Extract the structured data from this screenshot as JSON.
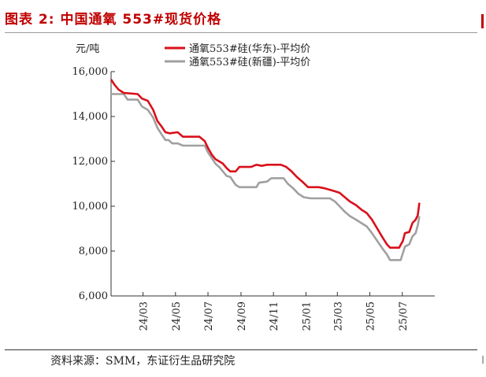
{
  "figure": {
    "title": "图表 2:  中国通氧 553#现货价格",
    "source": "资料来源：SMM，东证衍生品研究院"
  },
  "chart_data": {
    "type": "line",
    "title": "",
    "unit_label": "元/吨",
    "xlabel": "",
    "ylabel": "",
    "x_range": [
      "2024-01-01",
      "2025-08-31"
    ],
    "ylim": [
      6000,
      16000
    ],
    "yticks": [
      6000,
      8000,
      10000,
      12000,
      14000,
      16000
    ],
    "ytick_labels": [
      "6,000",
      "8,000",
      "10,000",
      "12,000",
      "14,000",
      "16,000"
    ],
    "xticks": [
      "2024-03-01",
      "2024-05-01",
      "2024-07-01",
      "2024-09-01",
      "2024-11-01",
      "2025-01-01",
      "2025-03-01",
      "2025-05-01",
      "2025-07-01"
    ],
    "xtick_labels": [
      "24/03",
      "24/05",
      "24/07",
      "24/09",
      "24/11",
      "25/01",
      "25/03",
      "25/05",
      "25/07"
    ],
    "grid": false,
    "legend_position": "top",
    "series": [
      {
        "name": "通氧553#硅(华东)-平均价",
        "color": "#d9101b",
        "points": [
          [
            "2024-01-01",
            15650
          ],
          [
            "2024-01-08",
            15400
          ],
          [
            "2024-01-15",
            15200
          ],
          [
            "2024-01-25",
            15050
          ],
          [
            "2024-02-20",
            15000
          ],
          [
            "2024-02-28",
            14800
          ],
          [
            "2024-03-10",
            14700
          ],
          [
            "2024-03-20",
            14300
          ],
          [
            "2024-03-28",
            13800
          ],
          [
            "2024-04-05",
            13550
          ],
          [
            "2024-04-12",
            13300
          ],
          [
            "2024-04-20",
            13250
          ],
          [
            "2024-05-05",
            13300
          ],
          [
            "2024-05-15",
            13100
          ],
          [
            "2024-06-15",
            13100
          ],
          [
            "2024-06-25",
            12900
          ],
          [
            "2024-07-01",
            12600
          ],
          [
            "2024-07-08",
            12300
          ],
          [
            "2024-07-15",
            12100
          ],
          [
            "2024-07-22",
            12000
          ],
          [
            "2024-07-29",
            11900
          ],
          [
            "2024-08-05",
            11700
          ],
          [
            "2024-08-12",
            11550
          ],
          [
            "2024-08-22",
            11550
          ],
          [
            "2024-08-29",
            11750
          ],
          [
            "2024-09-20",
            11750
          ],
          [
            "2024-09-30",
            11850
          ],
          [
            "2024-10-10",
            11800
          ],
          [
            "2024-10-20",
            11850
          ],
          [
            "2024-11-15",
            11850
          ],
          [
            "2024-11-25",
            11750
          ],
          [
            "2024-12-05",
            11550
          ],
          [
            "2024-12-15",
            11300
          ],
          [
            "2024-12-25",
            11100
          ],
          [
            "2025-01-05",
            10850
          ],
          [
            "2025-01-25",
            10850
          ],
          [
            "2025-02-05",
            10800
          ],
          [
            "2025-02-20",
            10700
          ],
          [
            "2025-03-05",
            10600
          ],
          [
            "2025-03-15",
            10400
          ],
          [
            "2025-03-25",
            10200
          ],
          [
            "2025-04-05",
            10050
          ],
          [
            "2025-04-15",
            9850
          ],
          [
            "2025-04-25",
            9700
          ],
          [
            "2025-05-05",
            9400
          ],
          [
            "2025-05-15",
            9000
          ],
          [
            "2025-05-25",
            8600
          ],
          [
            "2025-06-02",
            8300
          ],
          [
            "2025-06-08",
            8150
          ],
          [
            "2025-06-25",
            8150
          ],
          [
            "2025-07-02",
            8450
          ],
          [
            "2025-07-06",
            8800
          ],
          [
            "2025-07-14",
            8850
          ],
          [
            "2025-07-20",
            9250
          ],
          [
            "2025-07-26",
            9400
          ],
          [
            "2025-07-30",
            9600
          ],
          [
            "2025-08-02",
            10150
          ]
        ]
      },
      {
        "name": "通氧553#硅(新疆)-平均价",
        "color": "#a0a0a0",
        "points": [
          [
            "2024-01-01",
            15000
          ],
          [
            "2024-01-25",
            15000
          ],
          [
            "2024-02-01",
            14750
          ],
          [
            "2024-02-20",
            14750
          ],
          [
            "2024-02-28",
            14450
          ],
          [
            "2024-03-10",
            14300
          ],
          [
            "2024-03-20",
            13950
          ],
          [
            "2024-03-28",
            13500
          ],
          [
            "2024-04-05",
            13200
          ],
          [
            "2024-04-12",
            12950
          ],
          [
            "2024-04-18",
            12950
          ],
          [
            "2024-04-25",
            12800
          ],
          [
            "2024-05-05",
            12800
          ],
          [
            "2024-05-15",
            12700
          ],
          [
            "2024-06-25",
            12700
          ],
          [
            "2024-07-01",
            12400
          ],
          [
            "2024-07-08",
            12150
          ],
          [
            "2024-07-15",
            11900
          ],
          [
            "2024-07-22",
            11750
          ],
          [
            "2024-07-29",
            11550
          ],
          [
            "2024-08-05",
            11350
          ],
          [
            "2024-08-12",
            11300
          ],
          [
            "2024-08-22",
            10950
          ],
          [
            "2024-08-29",
            10850
          ],
          [
            "2024-09-30",
            10850
          ],
          [
            "2024-10-05",
            11050
          ],
          [
            "2024-10-20",
            11100
          ],
          [
            "2024-10-28",
            11250
          ],
          [
            "2024-11-20",
            11250
          ],
          [
            "2024-11-28",
            11000
          ],
          [
            "2024-12-08",
            10800
          ],
          [
            "2024-12-18",
            10550
          ],
          [
            "2024-12-28",
            10400
          ],
          [
            "2025-01-10",
            10350
          ],
          [
            "2025-02-15",
            10350
          ],
          [
            "2025-02-25",
            10200
          ],
          [
            "2025-03-05",
            10000
          ],
          [
            "2025-03-15",
            9750
          ],
          [
            "2025-03-25",
            9550
          ],
          [
            "2025-04-05",
            9400
          ],
          [
            "2025-04-15",
            9250
          ],
          [
            "2025-04-25",
            9100
          ],
          [
            "2025-05-05",
            8800
          ],
          [
            "2025-05-15",
            8450
          ],
          [
            "2025-05-25",
            8100
          ],
          [
            "2025-06-02",
            7850
          ],
          [
            "2025-06-08",
            7600
          ],
          [
            "2025-06-28",
            7600
          ],
          [
            "2025-07-02",
            7900
          ],
          [
            "2025-07-06",
            8200
          ],
          [
            "2025-07-14",
            8300
          ],
          [
            "2025-07-20",
            8650
          ],
          [
            "2025-07-26",
            8800
          ],
          [
            "2025-07-30",
            9150
          ],
          [
            "2025-08-02",
            9550
          ]
        ]
      }
    ]
  }
}
